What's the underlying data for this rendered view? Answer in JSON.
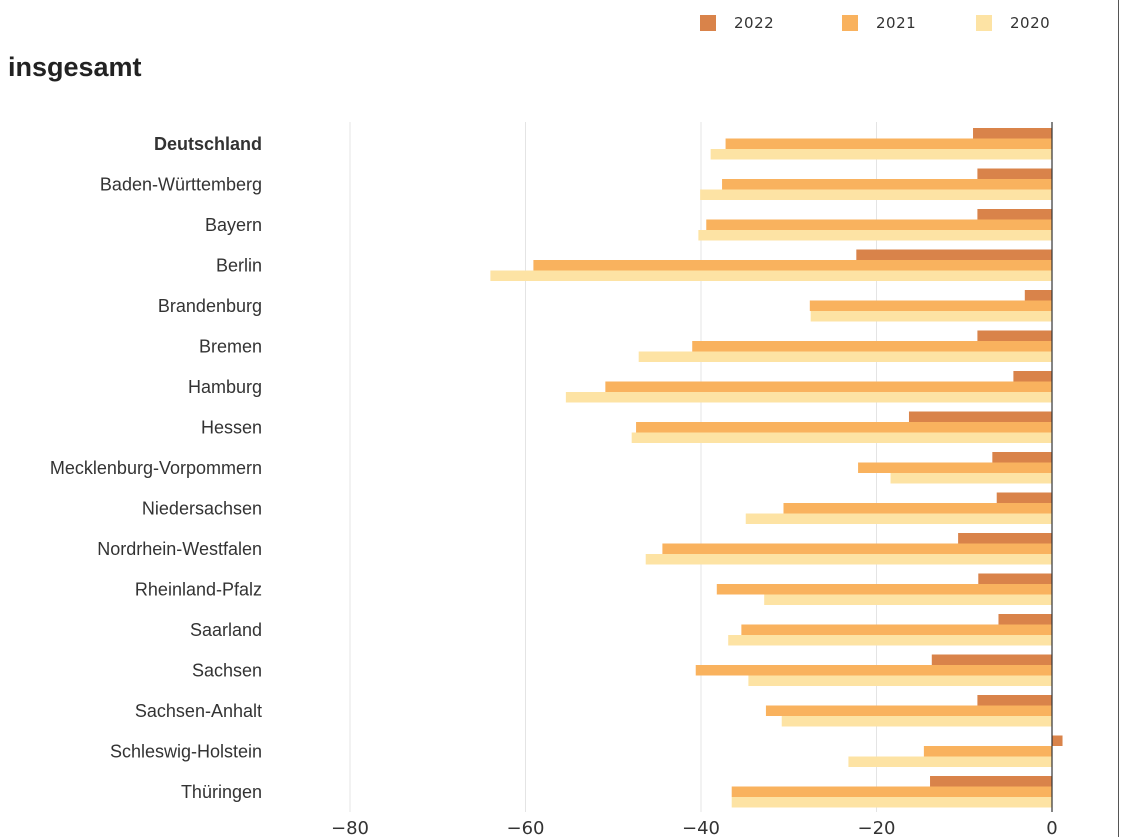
{
  "chart_data": {
    "type": "bar",
    "orientation": "horizontal",
    "title": "insgesamt",
    "categories": [
      "Deutschland",
      "Baden-Württemberg",
      "Bayern",
      "Berlin",
      "Brandenburg",
      "Bremen",
      "Hamburg",
      "Hessen",
      "Mecklenburg-Vorpommern",
      "Niedersachsen",
      "Nordrhein-Westfalen",
      "Rheinland-Pfalz",
      "Saarland",
      "Sachsen",
      "Sachsen-Anhalt",
      "Schleswig-Holstein",
      "Thüringen"
    ],
    "bold_categories": [
      "Deutschland"
    ],
    "series": [
      {
        "name": "2022",
        "color": "#d9834a",
        "values": [
          -9.0,
          -8.5,
          -8.5,
          -22.3,
          -3.1,
          -8.5,
          -4.4,
          -16.3,
          -6.8,
          -6.3,
          -10.7,
          -8.4,
          -6.1,
          -13.7,
          -8.5,
          1.2,
          -13.9
        ]
      },
      {
        "name": "2021",
        "color": "#f9b25e",
        "values": [
          -37.2,
          -37.6,
          -39.4,
          -59.1,
          -27.6,
          -41.0,
          -50.9,
          -47.4,
          -22.1,
          -30.6,
          -44.4,
          -38.2,
          -35.4,
          -40.6,
          -32.6,
          -14.6,
          -36.5
        ]
      },
      {
        "name": "2020",
        "color": "#fde3a4",
        "values": [
          -38.9,
          -40.1,
          -40.3,
          -64.0,
          -27.5,
          -47.1,
          -55.4,
          -47.9,
          -18.4,
          -34.9,
          -46.3,
          -32.8,
          -36.9,
          -34.6,
          -30.8,
          -23.2,
          -36.5
        ]
      }
    ],
    "xlim": [
      -100,
      0
    ],
    "xticks": [
      "−80",
      "−60",
      "−40",
      "−20",
      "0"
    ],
    "xtick_values": [
      -80,
      -60,
      -40,
      -20,
      0
    ],
    "grid": true,
    "legend_position": "top-right"
  }
}
